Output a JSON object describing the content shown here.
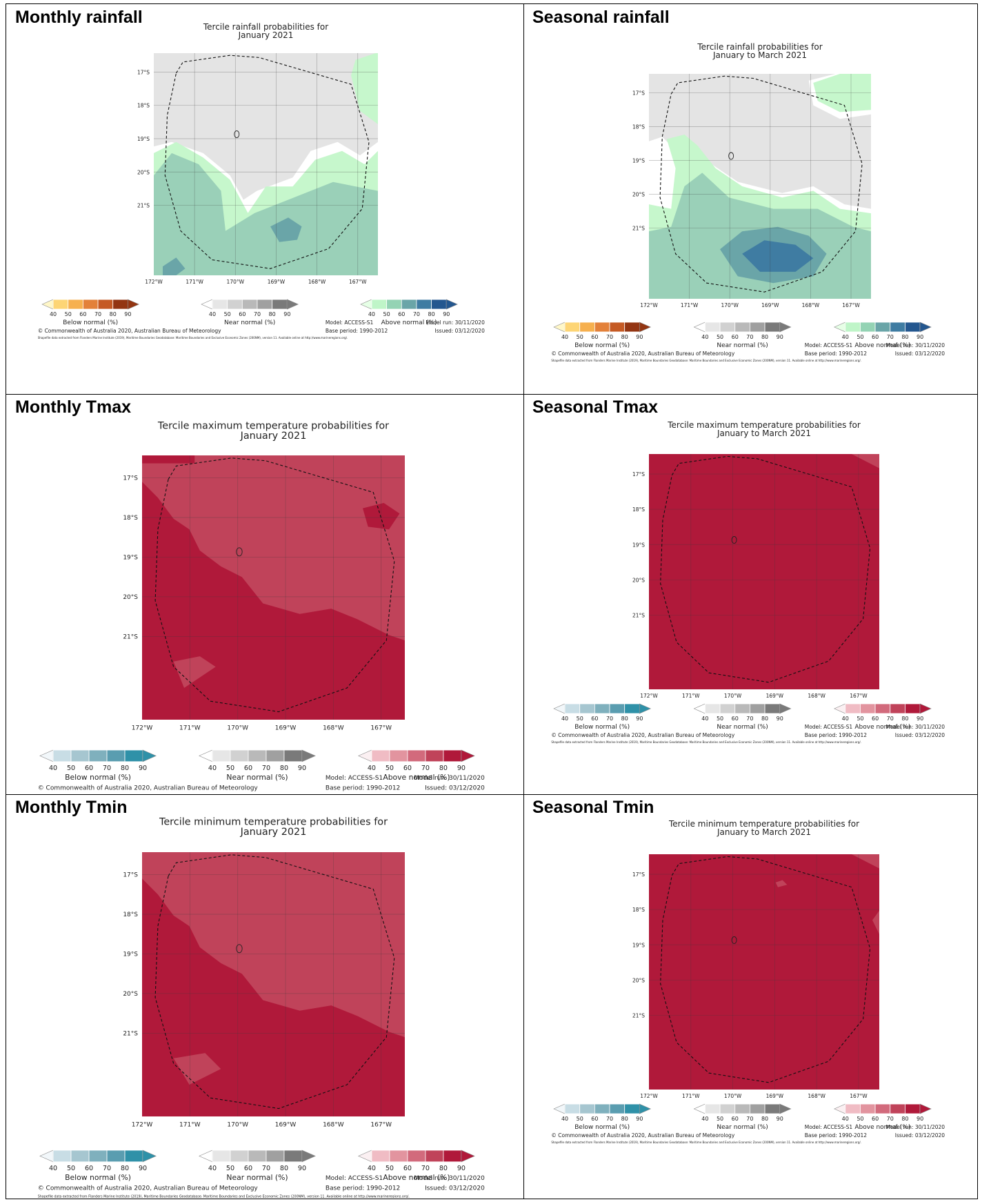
{
  "panels": [
    {
      "heading": "Monthly rainfall",
      "title_lines": [
        "Tercile rainfall probabilities for",
        "January 2021"
      ],
      "variant": "rainfall_monthly",
      "legend": [
        {
          "label": "Below normal (%)",
          "colors": [
            "#fff7c8",
            "#fdd575",
            "#f6b04f",
            "#e3813a",
            "#c55a24",
            "#933512"
          ]
        },
        {
          "label": "Near normal (%)",
          "colors": [
            "#ffffff",
            "#e6e6e6",
            "#d1d1d1",
            "#b9b9b9",
            "#a0a0a0",
            "#7a7a7a"
          ]
        },
        {
          "label": "Above normal (%)",
          "colors": [
            "#e6ffe6",
            "#bff5c8",
            "#94d3b4",
            "#6aa5a8",
            "#3f7ca2",
            "#24578f"
          ]
        }
      ]
    },
    {
      "heading": "Seasonal rainfall",
      "title_lines": [
        "Tercile rainfall probabilities for",
        "January to March 2021"
      ],
      "variant": "rainfall_seasonal",
      "legend": [
        {
          "label": "Below normal (%)",
          "colors": [
            "#fff7c8",
            "#fdd575",
            "#f6b04f",
            "#e3813a",
            "#c55a24",
            "#933512"
          ]
        },
        {
          "label": "Near normal (%)",
          "colors": [
            "#ffffff",
            "#e6e6e6",
            "#d1d1d1",
            "#b9b9b9",
            "#a0a0a0",
            "#7a7a7a"
          ]
        },
        {
          "label": "Above normal (%)",
          "colors": [
            "#e6ffe6",
            "#bff5c8",
            "#94d3b4",
            "#6aa5a8",
            "#3f7ca2",
            "#24578f"
          ]
        }
      ]
    },
    {
      "heading": "Monthly Tmax",
      "title_lines": [
        "Tercile maximum temperature probabilities for",
        "January 2021"
      ],
      "variant": "tmax_monthly",
      "legend": [
        {
          "label": "Below normal (%)",
          "colors": [
            "#f2f7fa",
            "#c8dde5",
            "#a6c6d0",
            "#7fb0bd",
            "#5a9db0",
            "#2f91a8"
          ]
        },
        {
          "label": "Near normal (%)",
          "colors": [
            "#ffffff",
            "#e6e6e6",
            "#d1d1d1",
            "#b9b9b9",
            "#a0a0a0",
            "#7a7a7a"
          ]
        },
        {
          "label": "Above normal (%)",
          "colors": [
            "#fbf0f2",
            "#f0bcc4",
            "#e2949f",
            "#d26a7c",
            "#c0435a",
            "#b0193a"
          ]
        }
      ]
    },
    {
      "heading": "Seasonal Tmax",
      "title_lines": [
        "Tercile maximum temperature probabilities for",
        "January to March 2021"
      ],
      "variant": "tmax_seasonal",
      "legend": [
        {
          "label": "Below normal (%)",
          "colors": [
            "#f2f7fa",
            "#c8dde5",
            "#a6c6d0",
            "#7fb0bd",
            "#5a9db0",
            "#2f91a8"
          ]
        },
        {
          "label": "Near normal (%)",
          "colors": [
            "#ffffff",
            "#e6e6e6",
            "#d1d1d1",
            "#b9b9b9",
            "#a0a0a0",
            "#7a7a7a"
          ]
        },
        {
          "label": "Above normal (%)",
          "colors": [
            "#fbf0f2",
            "#f0bcc4",
            "#e2949f",
            "#d26a7c",
            "#c0435a",
            "#b0193a"
          ]
        }
      ]
    },
    {
      "heading": "Monthly Tmin",
      "title_lines": [
        "Tercile minimum temperature probabilities for",
        "January 2021"
      ],
      "variant": "tmin_monthly",
      "legend": [
        {
          "label": "Below normal (%)",
          "colors": [
            "#f2f7fa",
            "#c8dde5",
            "#a6c6d0",
            "#7fb0bd",
            "#5a9db0",
            "#2f91a8"
          ]
        },
        {
          "label": "Near normal (%)",
          "colors": [
            "#ffffff",
            "#e6e6e6",
            "#d1d1d1",
            "#b9b9b9",
            "#a0a0a0",
            "#7a7a7a"
          ]
        },
        {
          "label": "Above normal (%)",
          "colors": [
            "#fbf0f2",
            "#f0bcc4",
            "#e2949f",
            "#d26a7c",
            "#c0435a",
            "#b0193a"
          ]
        }
      ]
    },
    {
      "heading": "Seasonal Tmin",
      "title_lines": [
        "Tercile minimum temperature probabilities for",
        "January to March 2021"
      ],
      "variant": "tmin_seasonal",
      "legend": [
        {
          "label": "Below normal (%)",
          "colors": [
            "#f2f7fa",
            "#c8dde5",
            "#a6c6d0",
            "#7fb0bd",
            "#5a9db0",
            "#2f91a8"
          ]
        },
        {
          "label": "Near normal (%)",
          "colors": [
            "#ffffff",
            "#e6e6e6",
            "#d1d1d1",
            "#b9b9b9",
            "#a0a0a0",
            "#7a7a7a"
          ]
        },
        {
          "label": "Above normal (%)",
          "colors": [
            "#fbf0f2",
            "#f0bcc4",
            "#e2949f",
            "#d26a7c",
            "#c0435a",
            "#b0193a"
          ]
        }
      ]
    }
  ],
  "lat_ticks": [
    "17°S",
    "18°S",
    "19°S",
    "20°S",
    "21°S"
  ],
  "lon_ticks": [
    "172°W",
    "171°W",
    "170°W",
    "169°W",
    "168°W",
    "167°W"
  ],
  "legend_ticks": [
    "40",
    "50",
    "60",
    "70",
    "80",
    "90"
  ],
  "model_label": "Model: ACCESS-S1",
  "model_run": "Model run: 30/11/2020",
  "base_period": "Base period: 1990-2012",
  "issued": "Issued: 03/12/2020",
  "copyright": "© Commonwealth of Australia 2020, Australian Bureau of Meteorology",
  "shapefile_note": "Shapefile data extracted from Flanders Marine Institute (2019), Maritime Boundaries Geodatabase: Maritime Boundaries and Exclusive Economic Zones (200NM), version 11. Available online at http://www.marineregions.org/.",
  "colors": {
    "red_base": "#b0193a",
    "red_light": "#c0435a",
    "grey": "#e4e4e4",
    "green_light": "#c6f7cc",
    "green_mid": "#9ad0b8",
    "teal": "#6aa5a8",
    "blue": "#3f7ca2"
  }
}
